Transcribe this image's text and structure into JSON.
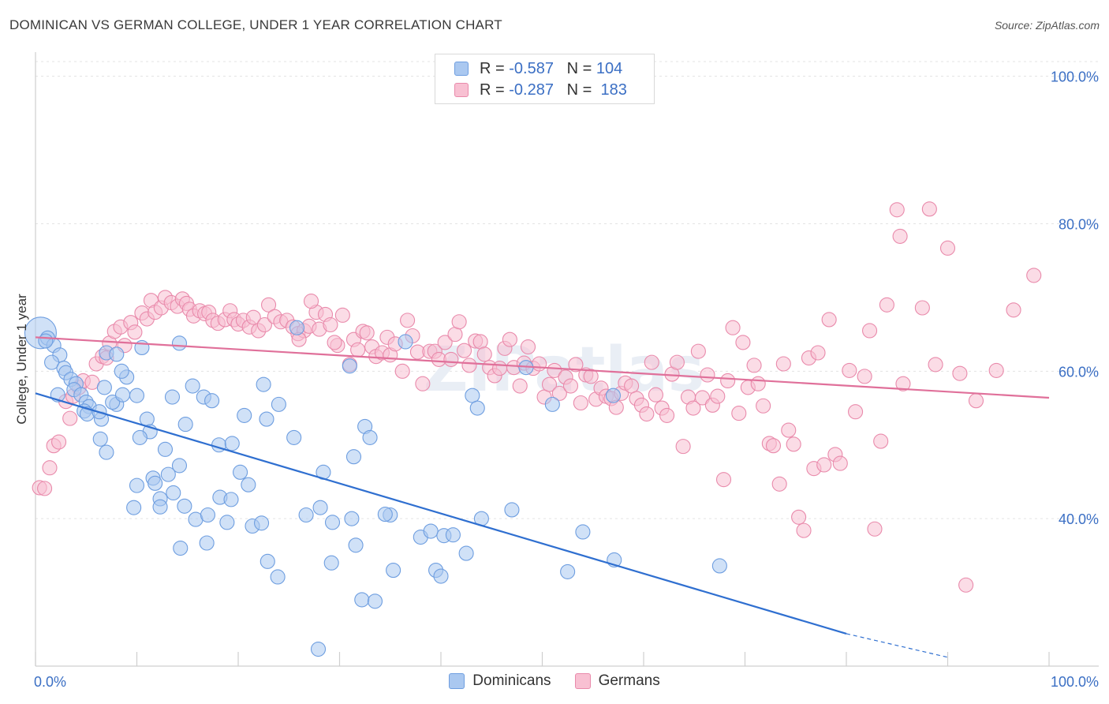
{
  "title": "DOMINICAN VS GERMAN COLLEGE, UNDER 1 YEAR CORRELATION CHART",
  "source": "Source: ZipAtlas.com",
  "watermark": "ZIPatlas",
  "legend": {
    "r_label": "R =",
    "n_label": "N =",
    "rows": [
      {
        "r": "-0.587",
        "n": "104",
        "color": "#aac8f0",
        "border": "#6e9ee0"
      },
      {
        "r": "-0.287",
        "n": "183",
        "color": "#f8c0d2",
        "border": "#e98aab"
      }
    ]
  },
  "bottom_legend": [
    {
      "label": "Dominicans",
      "color": "#aac8f0",
      "border": "#6e9ee0"
    },
    {
      "label": "Germans",
      "color": "#f8c0d2",
      "border": "#e98aab"
    }
  ],
  "chart_data": {
    "type": "scatter",
    "title": "DOMINICAN VS GERMAN COLLEGE, UNDER 1 YEAR CORRELATION CHART",
    "xlabel": "",
    "ylabel": "College, Under 1 year",
    "xlim": [
      0,
      100
    ],
    "ylim": [
      20,
      102
    ],
    "x_tick_labels": [
      {
        "value": 0,
        "label": "0.0%"
      },
      {
        "value": 100,
        "label": "100.0%"
      }
    ],
    "y_tick_labels": [
      {
        "value": 40,
        "label": "40.0%"
      },
      {
        "value": 60,
        "label": "60.0%"
      },
      {
        "value": 80,
        "label": "80.0%"
      },
      {
        "value": 100,
        "label": "100.0%"
      }
    ],
    "grid": true,
    "legend_position": "top-center",
    "series": [
      {
        "name": "Dominicans",
        "color": "#6e9ee0",
        "fill": "#aac8f0",
        "trend": {
          "x": [
            0,
            80
          ],
          "y": [
            57,
            24.4
          ],
          "dashed_x": [
            80,
            90
          ],
          "dashed_y": [
            24.4,
            21.2
          ],
          "color": "#2f6fd0"
        },
        "points": [
          [
            0.5,
            65.2
          ],
          [
            1.2,
            64.5
          ],
          [
            1.8,
            63.5
          ],
          [
            2.4,
            62.2
          ],
          [
            1.6,
            61.2
          ],
          [
            2.8,
            60.4
          ],
          [
            3.0,
            59.8
          ],
          [
            3.5,
            58.9
          ],
          [
            4.0,
            58.3
          ],
          [
            3.8,
            57.5
          ],
          [
            4.5,
            56.8
          ],
          [
            5.0,
            55.8
          ],
          [
            5.3,
            55.2
          ],
          [
            4.8,
            54.6
          ],
          [
            5.1,
            54.2
          ],
          [
            6.5,
            53.5
          ],
          [
            6.3,
            54.5
          ],
          [
            8.0,
            55.5
          ],
          [
            7.6,
            55.8
          ],
          [
            8.6,
            56.8
          ],
          [
            9.0,
            59.2
          ],
          [
            8.5,
            60.0
          ],
          [
            7.0,
            62.5
          ],
          [
            8.0,
            62.3
          ],
          [
            10.5,
            63.2
          ],
          [
            6.8,
            57.8
          ],
          [
            10.0,
            56.7
          ],
          [
            11.0,
            53.5
          ],
          [
            11.3,
            51.8
          ],
          [
            10.3,
            51.0
          ],
          [
            6.4,
            50.8
          ],
          [
            7.0,
            49.0
          ],
          [
            12.8,
            49.4
          ],
          [
            13.5,
            56.5
          ],
          [
            15.5,
            58.0
          ],
          [
            16.6,
            56.5
          ],
          [
            14.8,
            52.8
          ],
          [
            17.4,
            56.0
          ],
          [
            18.1,
            50.0
          ],
          [
            19.4,
            50.2
          ],
          [
            20.6,
            54.0
          ],
          [
            22.8,
            53.5
          ],
          [
            22.5,
            58.2
          ],
          [
            24.0,
            55.5
          ],
          [
            25.5,
            51.0
          ],
          [
            14.2,
            47.2
          ],
          [
            13.1,
            46.0
          ],
          [
            11.6,
            45.5
          ],
          [
            10.0,
            44.5
          ],
          [
            11.8,
            44.8
          ],
          [
            12.3,
            42.7
          ],
          [
            13.6,
            43.5
          ],
          [
            14.7,
            41.7
          ],
          [
            15.8,
            39.9
          ],
          [
            17.0,
            40.5
          ],
          [
            16.9,
            36.7
          ],
          [
            14.3,
            36.0
          ],
          [
            18.2,
            42.9
          ],
          [
            19.3,
            42.6
          ],
          [
            18.9,
            39.5
          ],
          [
            20.2,
            46.3
          ],
          [
            21.0,
            44.6
          ],
          [
            21.4,
            39.0
          ],
          [
            22.3,
            39.4
          ],
          [
            22.9,
            34.2
          ],
          [
            23.9,
            32.1
          ],
          [
            25.8,
            65.9
          ],
          [
            28.4,
            46.3
          ],
          [
            26.7,
            40.5
          ],
          [
            28.1,
            41.5
          ],
          [
            29.3,
            39.5
          ],
          [
            29.2,
            34.0
          ],
          [
            31.0,
            60.7
          ],
          [
            31.2,
            40.0
          ],
          [
            31.6,
            36.4
          ],
          [
            31.4,
            48.4
          ],
          [
            32.5,
            52.5
          ],
          [
            33.0,
            51.0
          ],
          [
            32.2,
            29.0
          ],
          [
            33.5,
            28.8
          ],
          [
            35.0,
            40.5
          ],
          [
            34.5,
            40.6
          ],
          [
            35.3,
            33.0
          ],
          [
            38.0,
            37.5
          ],
          [
            39.0,
            38.3
          ],
          [
            39.5,
            33.0
          ],
          [
            40.0,
            32.2
          ],
          [
            40.3,
            37.7
          ],
          [
            41.2,
            37.8
          ],
          [
            42.5,
            35.3
          ],
          [
            43.1,
            56.7
          ],
          [
            43.6,
            55.0
          ],
          [
            44.0,
            40.0
          ],
          [
            47.0,
            41.2
          ],
          [
            48.4,
            60.5
          ],
          [
            51.0,
            55.5
          ],
          [
            52.5,
            32.8
          ],
          [
            54.0,
            38.2
          ],
          [
            57.0,
            56.7
          ],
          [
            57.1,
            34.4
          ],
          [
            67.5,
            33.6
          ],
          [
            14.2,
            63.8
          ],
          [
            12.3,
            41.6
          ],
          [
            27.9,
            22.3
          ],
          [
            1.0,
            64.1
          ],
          [
            2.2,
            56.8
          ],
          [
            9.7,
            41.5
          ],
          [
            36.5,
            64.0
          ]
        ]
      },
      {
        "name": "Germans",
        "color": "#e98aab",
        "fill": "#f8c0d2",
        "trend": {
          "x": [
            0,
            100
          ],
          "y": [
            64.6,
            56.4
          ],
          "color": "#e0709a"
        },
        "points": [
          [
            0.4,
            44.2
          ],
          [
            0.9,
            44.1
          ],
          [
            1.4,
            46.9
          ],
          [
            1.8,
            49.9
          ],
          [
            2.3,
            50.4
          ],
          [
            3.0,
            55.9
          ],
          [
            3.4,
            53.6
          ],
          [
            3.7,
            56.6
          ],
          [
            4.3,
            57.8
          ],
          [
            4.7,
            58.7
          ],
          [
            5.6,
            58.5
          ],
          [
            6.0,
            61.0
          ],
          [
            6.6,
            62.0
          ],
          [
            7.0,
            61.8
          ],
          [
            7.3,
            63.8
          ],
          [
            7.8,
            65.4
          ],
          [
            8.4,
            66.0
          ],
          [
            8.8,
            63.5
          ],
          [
            9.4,
            66.6
          ],
          [
            9.8,
            65.3
          ],
          [
            10.5,
            67.9
          ],
          [
            11.0,
            67.1
          ],
          [
            11.4,
            69.6
          ],
          [
            11.8,
            68.0
          ],
          [
            12.4,
            68.6
          ],
          [
            12.8,
            70.0
          ],
          [
            13.4,
            69.3
          ],
          [
            14.0,
            68.8
          ],
          [
            14.5,
            69.8
          ],
          [
            14.9,
            69.2
          ],
          [
            15.2,
            68.4
          ],
          [
            15.6,
            67.5
          ],
          [
            16.2,
            68.2
          ],
          [
            16.7,
            67.8
          ],
          [
            17.1,
            68.0
          ],
          [
            17.5,
            66.9
          ],
          [
            18.0,
            66.5
          ],
          [
            18.7,
            67.0
          ],
          [
            19.2,
            68.2
          ],
          [
            19.6,
            67.0
          ],
          [
            20.0,
            66.4
          ],
          [
            20.5,
            66.9
          ],
          [
            21.1,
            66.0
          ],
          [
            21.5,
            67.3
          ],
          [
            22.0,
            65.5
          ],
          [
            22.6,
            66.3
          ],
          [
            23.0,
            69.0
          ],
          [
            23.6,
            67.4
          ],
          [
            24.2,
            66.7
          ],
          [
            24.8,
            66.9
          ],
          [
            25.4,
            66.0
          ],
          [
            25.9,
            65.1
          ],
          [
            26.5,
            65.5
          ],
          [
            27.0,
            66.1
          ],
          [
            27.7,
            68.0
          ],
          [
            28.0,
            65.7
          ],
          [
            28.6,
            67.7
          ],
          [
            29.1,
            66.3
          ],
          [
            29.8,
            63.5
          ],
          [
            30.3,
            67.6
          ],
          [
            31.0,
            60.9
          ],
          [
            31.4,
            64.3
          ],
          [
            31.8,
            62.9
          ],
          [
            32.3,
            65.4
          ],
          [
            32.7,
            65.2
          ],
          [
            33.2,
            63.3
          ],
          [
            33.6,
            62.0
          ],
          [
            34.2,
            62.5
          ],
          [
            34.7,
            64.6
          ],
          [
            35.0,
            62.2
          ],
          [
            35.5,
            63.7
          ],
          [
            36.2,
            60.0
          ],
          [
            36.7,
            66.9
          ],
          [
            37.2,
            64.8
          ],
          [
            37.7,
            62.6
          ],
          [
            38.2,
            58.3
          ],
          [
            38.9,
            62.7
          ],
          [
            39.4,
            62.7
          ],
          [
            39.8,
            61.6
          ],
          [
            40.4,
            63.9
          ],
          [
            41.0,
            61.6
          ],
          [
            41.4,
            65.0
          ],
          [
            41.8,
            66.7
          ],
          [
            42.3,
            62.8
          ],
          [
            42.8,
            60.8
          ],
          [
            43.4,
            64.1
          ],
          [
            43.9,
            64.0
          ],
          [
            44.3,
            62.3
          ],
          [
            44.8,
            60.5
          ],
          [
            45.3,
            59.4
          ],
          [
            45.8,
            60.4
          ],
          [
            46.3,
            63.1
          ],
          [
            46.8,
            64.3
          ],
          [
            47.2,
            60.5
          ],
          [
            47.8,
            58.0
          ],
          [
            48.2,
            61.1
          ],
          [
            48.6,
            63.3
          ],
          [
            49.1,
            60.4
          ],
          [
            49.7,
            61.0
          ],
          [
            50.2,
            56.5
          ],
          [
            50.7,
            58.2
          ],
          [
            51.2,
            60.1
          ],
          [
            51.7,
            57.0
          ],
          [
            52.3,
            59.2
          ],
          [
            52.8,
            58.0
          ],
          [
            53.3,
            60.9
          ],
          [
            53.8,
            55.7
          ],
          [
            54.3,
            59.5
          ],
          [
            54.8,
            59.3
          ],
          [
            55.3,
            56.2
          ],
          [
            55.8,
            57.7
          ],
          [
            56.3,
            56.6
          ],
          [
            56.8,
            56.3
          ],
          [
            57.3,
            55.1
          ],
          [
            57.8,
            57.0
          ],
          [
            58.2,
            58.4
          ],
          [
            58.8,
            58.0
          ],
          [
            59.3,
            56.3
          ],
          [
            59.8,
            55.4
          ],
          [
            60.3,
            54.2
          ],
          [
            60.8,
            61.2
          ],
          [
            61.2,
            56.8
          ],
          [
            61.8,
            55.0
          ],
          [
            62.3,
            54.0
          ],
          [
            62.8,
            59.6
          ],
          [
            63.3,
            61.2
          ],
          [
            63.9,
            49.8
          ],
          [
            64.4,
            56.5
          ],
          [
            64.9,
            55.0
          ],
          [
            65.4,
            62.7
          ],
          [
            65.8,
            56.4
          ],
          [
            66.3,
            59.5
          ],
          [
            66.8,
            55.4
          ],
          [
            67.3,
            56.6
          ],
          [
            67.9,
            45.3
          ],
          [
            68.3,
            58.7
          ],
          [
            68.8,
            65.9
          ],
          [
            69.4,
            54.3
          ],
          [
            69.8,
            63.9
          ],
          [
            70.3,
            57.8
          ],
          [
            70.9,
            60.8
          ],
          [
            71.3,
            58.3
          ],
          [
            71.8,
            55.3
          ],
          [
            72.4,
            50.2
          ],
          [
            72.8,
            49.9
          ],
          [
            73.4,
            44.7
          ],
          [
            73.8,
            61.0
          ],
          [
            74.3,
            52.0
          ],
          [
            74.8,
            50.1
          ],
          [
            75.3,
            40.2
          ],
          [
            75.8,
            38.4
          ],
          [
            76.3,
            61.8
          ],
          [
            76.8,
            46.8
          ],
          [
            77.2,
            62.5
          ],
          [
            77.8,
            47.3
          ],
          [
            78.3,
            67.0
          ],
          [
            78.9,
            48.7
          ],
          [
            79.4,
            47.5
          ],
          [
            80.3,
            60.1
          ],
          [
            80.9,
            54.5
          ],
          [
            81.8,
            59.3
          ],
          [
            82.3,
            65.5
          ],
          [
            82.8,
            38.6
          ],
          [
            83.4,
            50.5
          ],
          [
            84.0,
            69.0
          ],
          [
            85.0,
            81.9
          ],
          [
            85.3,
            78.3
          ],
          [
            85.6,
            58.3
          ],
          [
            87.5,
            68.6
          ],
          [
            88.2,
            82.0
          ],
          [
            88.8,
            60.9
          ],
          [
            90.0,
            76.7
          ],
          [
            91.2,
            59.7
          ],
          [
            91.8,
            31.0
          ],
          [
            92.8,
            56.0
          ],
          [
            94.8,
            60.1
          ],
          [
            96.5,
            68.3
          ],
          [
            98.5,
            73.0
          ],
          [
            29.5,
            63.9
          ],
          [
            27.2,
            69.5
          ],
          [
            26.0,
            64.3
          ]
        ]
      }
    ]
  }
}
